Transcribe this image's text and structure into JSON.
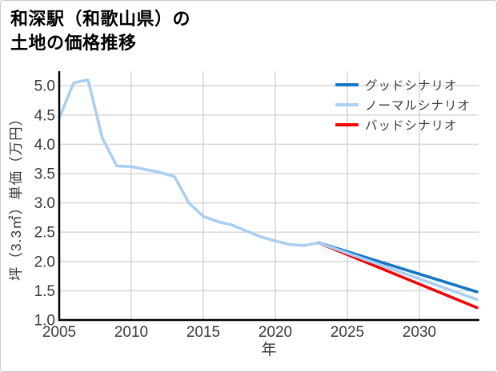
{
  "header": {
    "line1": "和深駅（和歌山県）の",
    "line2": "土地の価格推移"
  },
  "chart_data": {
    "type": "line",
    "title": "和深駅（和歌山県）の土地の価格推移",
    "xlabel": "年",
    "ylabel": "坪（3.3㎡）単価（万円）",
    "xlim": [
      2005,
      2034.2
    ],
    "ylim": [
      1.0,
      5.25
    ],
    "xticks": [
      2005,
      2010,
      2015,
      2020,
      2025,
      2030
    ],
    "yticks": [
      1.0,
      1.5,
      2.0,
      2.5,
      3.0,
      3.5,
      4.0,
      4.5,
      5.0
    ],
    "grid": true,
    "legend_position": "upper right",
    "colors": {
      "good": "#1477c8",
      "normal": "#a9cff2",
      "bad": "#ee0808",
      "historical": "#a9cff2",
      "grid": "#d9d9d9",
      "axis": "#000000",
      "tick_text": "#3a3a3a"
    },
    "series": [
      {
        "role": "historical",
        "color": "#a9cff2",
        "x": [
          2005,
          2006,
          2007,
          2008,
          2009,
          2010,
          2011,
          2012,
          2013,
          2014,
          2015,
          2016,
          2017,
          2018,
          2019,
          2020,
          2021,
          2022,
          2023
        ],
        "values": [
          4.45,
          5.05,
          5.1,
          4.1,
          3.63,
          3.62,
          3.57,
          3.52,
          3.45,
          3.0,
          2.77,
          2.68,
          2.62,
          2.52,
          2.42,
          2.35,
          2.29,
          2.27,
          2.32
        ]
      },
      {
        "role": "forecast-good",
        "label": "グッドシナリオ",
        "color": "#1477c8",
        "x": [
          2023,
          2034
        ],
        "values": [
          2.32,
          1.48
        ]
      },
      {
        "role": "forecast-bad",
        "label": "バッドシナリオ",
        "color": "#ee0808",
        "x": [
          2023,
          2034
        ],
        "values": [
          2.32,
          1.21
        ]
      },
      {
        "role": "forecast-normal",
        "label": "ノーマルシナリオ",
        "color": "#a9cff2",
        "x": [
          2023,
          2034
        ],
        "values": [
          2.32,
          1.35
        ]
      }
    ],
    "legend": [
      {
        "label": "グッドシナリオ",
        "color": "#1477c8"
      },
      {
        "label": "ノーマルシナリオ",
        "color": "#a9cff2"
      },
      {
        "label": "バッドシナリオ",
        "color": "#ee0808"
      }
    ]
  }
}
